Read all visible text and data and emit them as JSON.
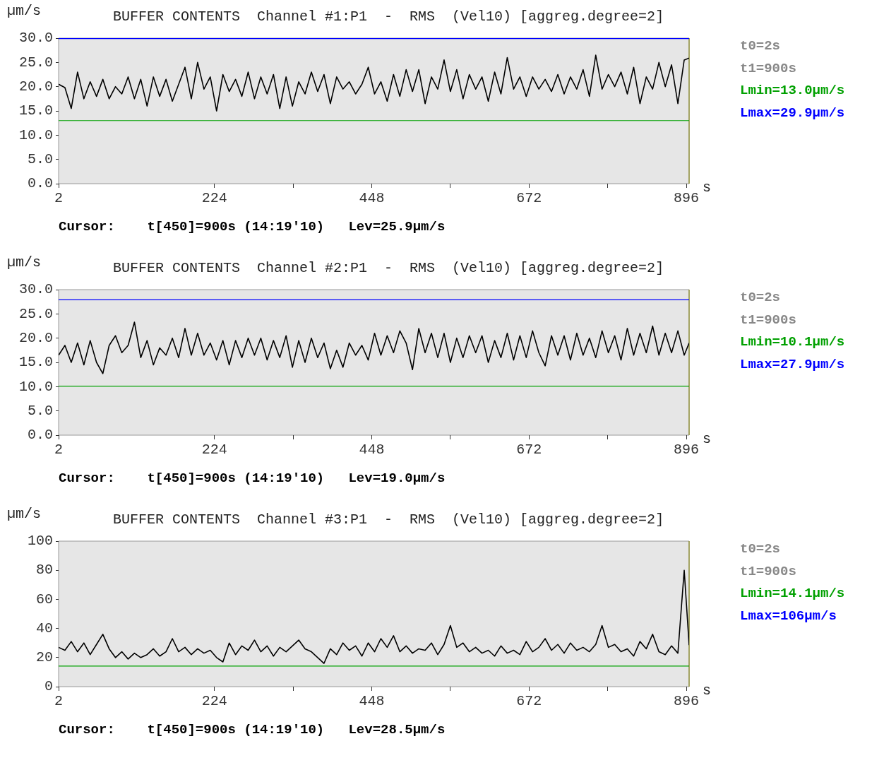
{
  "chart_data": [
    {
      "type": "line",
      "title": "BUFFER CONTENTS  Channel #1:P1  -  RMS  (Vel10) [aggreg.degree=2]",
      "ylabel": "µm/s",
      "xlabel": "s",
      "legend": false,
      "grid": false,
      "marker": "none",
      "line_style": "solid",
      "annotations": [
        "t0=2s",
        "t1=900s",
        "Cursor:    t[450]=900s (14:19'10)   Lev=25.9µm/s"
      ],
      "x": [
        2,
        11,
        20,
        29,
        38,
        47,
        56,
        65,
        74,
        83,
        92,
        101,
        110,
        119,
        128,
        137,
        146,
        155,
        164,
        173,
        182,
        191,
        200,
        209,
        218,
        227,
        236,
        245,
        254,
        263,
        272,
        281,
        290,
        299,
        308,
        317,
        326,
        335,
        344,
        353,
        362,
        371,
        380,
        389,
        398,
        407,
        416,
        425,
        434,
        443,
        452,
        461,
        470,
        479,
        488,
        497,
        506,
        515,
        524,
        533,
        542,
        551,
        560,
        569,
        578,
        587,
        596,
        605,
        614,
        623,
        632,
        641,
        650,
        659,
        668,
        677,
        686,
        695,
        704,
        713,
        722,
        731,
        740,
        749,
        758,
        767,
        776,
        785,
        794,
        803,
        812,
        821,
        830,
        839,
        848,
        857,
        866,
        875,
        884,
        893,
        900
      ],
      "xlim": [
        2,
        900
      ],
      "xticks": [
        2,
        224,
        {
          "value": 336,
          "label": null
        },
        448,
        {
          "value": 560,
          "label": null
        },
        672,
        {
          "value": 784,
          "label": null
        },
        896
      ],
      "ylim": [
        0,
        30
      ],
      "yticks": [
        {
          "value": 0,
          "label": "0.0"
        },
        {
          "value": 5,
          "label": "5.0"
        },
        {
          "value": 10,
          "label": "10.0"
        },
        {
          "value": 15,
          "label": "15.0"
        },
        {
          "value": 20,
          "label": "20.0"
        },
        {
          "value": 25,
          "label": "25.0"
        },
        {
          "value": 30,
          "label": "30.0"
        }
      ],
      "ref_lines": [
        {
          "axis": "y",
          "value": 13.0,
          "label": "Lmin=13.0µm/s",
          "color": "#00a000"
        },
        {
          "axis": "y",
          "value": 29.9,
          "label": "Lmax=29.9µm/s",
          "color": "#0000ff"
        }
      ],
      "series": [
        {
          "color": "#000000",
          "values": [
            20.5,
            19.8,
            15.5,
            23,
            17.5,
            21,
            18,
            21.5,
            17.5,
            20,
            18.5,
            22,
            17.5,
            21.5,
            16,
            22,
            18,
            21.5,
            17,
            20.5,
            24,
            17.5,
            25,
            19.5,
            22,
            15,
            22.5,
            19,
            21.5,
            18,
            23,
            17.5,
            22,
            18.5,
            22.5,
            15.5,
            22,
            16,
            21,
            18.5,
            23,
            19,
            22.5,
            16.5,
            22,
            19.5,
            21,
            18.5,
            20.5,
            24,
            18.5,
            21,
            17,
            22.5,
            18,
            23.5,
            19,
            23.5,
            16.5,
            22,
            19.5,
            25.5,
            19,
            23.5,
            17.5,
            22.5,
            19.5,
            22,
            17,
            23,
            18.5,
            26,
            19.5,
            22,
            18,
            22,
            19.5,
            21.5,
            19,
            22.5,
            18.5,
            22,
            19.5,
            23.5,
            18,
            26.5,
            19.5,
            22.5,
            20,
            23,
            18.5,
            24,
            16.5,
            22,
            19.5,
            25,
            20,
            24.5,
            16.5,
            25.5,
            25.9
          ]
        }
      ]
    },
    {
      "type": "line",
      "title": "BUFFER CONTENTS  Channel #2:P1  -  RMS  (Vel10) [aggreg.degree=2]",
      "ylabel": "µm/s",
      "xlabel": "s",
      "legend": false,
      "grid": false,
      "marker": "none",
      "line_style": "solid",
      "annotations": [
        "t0=2s",
        "t1=900s",
        "Cursor:    t[450]=900s (14:19'10)   Lev=19.0µm/s"
      ],
      "x": [
        2,
        11,
        20,
        29,
        38,
        47,
        56,
        65,
        74,
        83,
        92,
        101,
        110,
        119,
        128,
        137,
        146,
        155,
        164,
        173,
        182,
        191,
        200,
        209,
        218,
        227,
        236,
        245,
        254,
        263,
        272,
        281,
        290,
        299,
        308,
        317,
        326,
        335,
        344,
        353,
        362,
        371,
        380,
        389,
        398,
        407,
        416,
        425,
        434,
        443,
        452,
        461,
        470,
        479,
        488,
        497,
        506,
        515,
        524,
        533,
        542,
        551,
        560,
        569,
        578,
        587,
        596,
        605,
        614,
        623,
        632,
        641,
        650,
        659,
        668,
        677,
        686,
        695,
        704,
        713,
        722,
        731,
        740,
        749,
        758,
        767,
        776,
        785,
        794,
        803,
        812,
        821,
        830,
        839,
        848,
        857,
        866,
        875,
        884,
        893,
        900
      ],
      "xlim": [
        2,
        900
      ],
      "xticks": [
        2,
        224,
        {
          "value": 336,
          "label": null
        },
        448,
        {
          "value": 560,
          "label": null
        },
        672,
        {
          "value": 784,
          "label": null
        },
        896
      ],
      "ylim": [
        0,
        30
      ],
      "yticks": [
        {
          "value": 0,
          "label": "0.0"
        },
        {
          "value": 5,
          "label": "5.0"
        },
        {
          "value": 10,
          "label": "10.0"
        },
        {
          "value": 15,
          "label": "15.0"
        },
        {
          "value": 20,
          "label": "20.0"
        },
        {
          "value": 25,
          "label": "25.0"
        },
        {
          "value": 30,
          "label": "30.0"
        }
      ],
      "ref_lines": [
        {
          "axis": "y",
          "value": 10.1,
          "label": "Lmin=10.1µm/s",
          "color": "#00a000"
        },
        {
          "axis": "y",
          "value": 27.9,
          "label": "Lmax=27.9µm/s",
          "color": "#0000ff"
        }
      ],
      "series": [
        {
          "color": "#000000",
          "values": [
            16.5,
            18.5,
            15,
            19,
            14.5,
            19.5,
            15,
            12.7,
            18.5,
            20.5,
            17,
            18.5,
            23.3,
            16,
            19.5,
            14.5,
            18,
            16.5,
            20,
            16,
            22,
            16.5,
            21,
            16.5,
            19,
            15.5,
            19.5,
            14.5,
            19.5,
            16,
            20,
            16.5,
            20,
            15.5,
            19.5,
            16,
            20.5,
            14,
            19.5,
            15,
            20,
            16,
            19,
            13.7,
            17.5,
            14,
            19,
            16.5,
            18.5,
            15.5,
            21,
            16.5,
            20.5,
            17,
            21.5,
            19,
            13.5,
            22,
            17,
            21,
            16,
            21,
            15,
            20,
            16,
            20.5,
            17,
            20.5,
            15,
            19.5,
            16,
            21,
            15.5,
            20.5,
            16,
            21.5,
            17,
            14.3,
            20.5,
            16.5,
            20.5,
            15.5,
            21,
            16.5,
            20,
            16,
            21.5,
            17,
            20.5,
            15.5,
            22,
            16.5,
            21,
            17,
            22.5,
            16.5,
            21,
            17,
            21.5,
            16.5,
            19.0
          ]
        }
      ]
    },
    {
      "type": "line",
      "title": "BUFFER CONTENTS  Channel #3:P1  -  RMS  (Vel10) [aggreg.degree=2]",
      "ylabel": "µm/s",
      "xlabel": "s",
      "legend": false,
      "grid": false,
      "marker": "none",
      "line_style": "solid",
      "annotations": [
        "t0=2s",
        "t1=900s",
        "Lmax=106µm/s",
        "Cursor:    t[450]=900s (14:19'10)   Lev=28.5µm/s"
      ],
      "x": [
        2,
        11,
        20,
        29,
        38,
        47,
        56,
        65,
        74,
        83,
        92,
        101,
        110,
        119,
        128,
        137,
        146,
        155,
        164,
        173,
        182,
        191,
        200,
        209,
        218,
        227,
        236,
        245,
        254,
        263,
        272,
        281,
        290,
        299,
        308,
        317,
        326,
        335,
        344,
        353,
        362,
        371,
        380,
        389,
        398,
        407,
        416,
        425,
        434,
        443,
        452,
        461,
        470,
        479,
        488,
        497,
        506,
        515,
        524,
        533,
        542,
        551,
        560,
        569,
        578,
        587,
        596,
        605,
        614,
        623,
        632,
        641,
        650,
        659,
        668,
        677,
        686,
        695,
        704,
        713,
        722,
        731,
        740,
        749,
        758,
        767,
        776,
        785,
        794,
        803,
        812,
        821,
        830,
        839,
        848,
        857,
        866,
        875,
        884,
        893,
        900
      ],
      "xlim": [
        2,
        900
      ],
      "xticks": [
        2,
        224,
        {
          "value": 336,
          "label": null
        },
        448,
        {
          "value": 560,
          "label": null
        },
        672,
        {
          "value": 784,
          "label": null
        },
        896
      ],
      "ylim": [
        0,
        100
      ],
      "yticks": [
        0,
        20,
        40,
        60,
        80,
        100
      ],
      "ref_lines": [
        {
          "axis": "y",
          "value": 14.1,
          "label": "Lmin=14.1µm/s",
          "color": "#00a000"
        }
      ],
      "series": [
        {
          "color": "#000000",
          "values": [
            27,
            25,
            31,
            24,
            30,
            22,
            29,
            36,
            26,
            20,
            24,
            19,
            23,
            20,
            22,
            26,
            21,
            24,
            33,
            24,
            27,
            22,
            26,
            23,
            25,
            20,
            17,
            30,
            22,
            28,
            25,
            32,
            24,
            28,
            21,
            27,
            24,
            28,
            32,
            26,
            24,
            20,
            16,
            26,
            22,
            30,
            25,
            28,
            21,
            30,
            24,
            33,
            27,
            35,
            24,
            28,
            23,
            26,
            25,
            30,
            22,
            29,
            42,
            27,
            30,
            24,
            27,
            23,
            25,
            21,
            28,
            23,
            25,
            22,
            31,
            24,
            27,
            33,
            25,
            29,
            23,
            30,
            25,
            27,
            24,
            29,
            42,
            27,
            29,
            24,
            26,
            21,
            31,
            26,
            36,
            24,
            22,
            28,
            23,
            80,
            28.5
          ]
        }
      ]
    }
  ]
}
